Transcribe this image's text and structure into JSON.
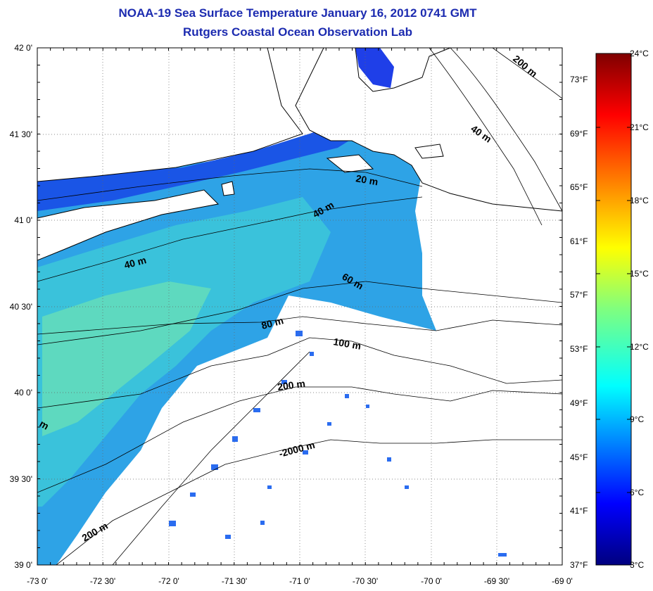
{
  "title": "NOAA-19 Sea Surface Temperature January 16, 2012 0741 GMT",
  "subtitle": "Rutgers Coastal Ocean Observation Lab",
  "map": {
    "lon_range": [
      -73.0,
      -69.0
    ],
    "lat_range": [
      39.0,
      42.0
    ],
    "lon_ticks": [
      "-73 0'",
      "-72 30'",
      "-72 0'",
      "-71 30'",
      "-71 0'",
      "-70 30'",
      "-70 0'",
      "-69 30'",
      "-69 0'"
    ],
    "lat_ticks": [
      "42 0'",
      "41 30'",
      "41 0'",
      "40 30'",
      "40 0'",
      "39 30'",
      "39 0'"
    ],
    "gridlines": "dotted",
    "contour_labels": [
      "20 m",
      "40 m",
      "40 m",
      "40 m",
      "60 m",
      "80 m",
      "100 m",
      "200 m",
      "200 m",
      "-2000 m",
      "200 m",
      "m"
    ],
    "colors": {
      "land_outline": "#000000",
      "water_bg": "#ffffff",
      "title": "#1c2bb0"
    }
  },
  "colorbar": {
    "celsius_labels": [
      "24°C",
      "21°C",
      "18°C",
      "15°C",
      "12°C",
      "9°C",
      "6°C",
      "3°C"
    ],
    "fahrenheit_labels": [
      "73°F",
      "69°F",
      "65°F",
      "61°F",
      "57°F",
      "53°F",
      "49°F",
      "45°F",
      "41°F",
      "37°F"
    ],
    "range_c": [
      3,
      24
    ],
    "colormap": "jet"
  }
}
